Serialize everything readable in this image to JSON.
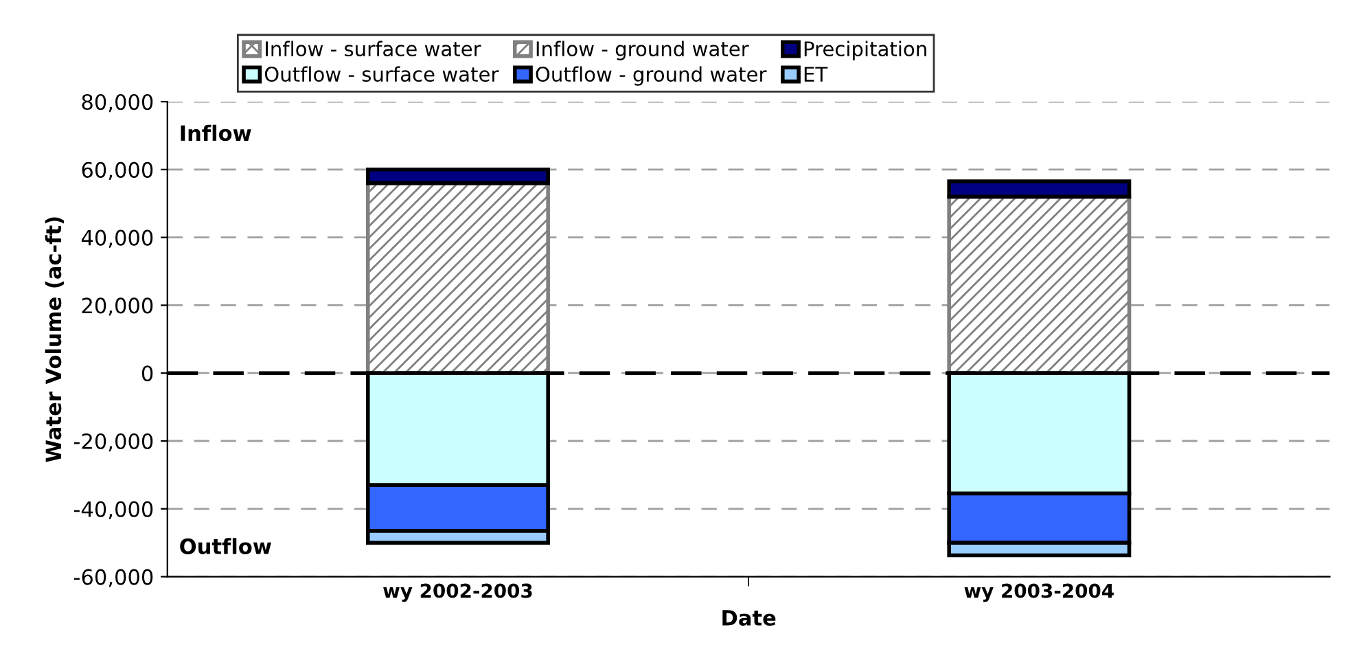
{
  "chart_data": {
    "type": "bar",
    "stacked": true,
    "xlabel": "Date",
    "ylabel": "Water Volume (ac-ft)",
    "categories": [
      "wy 2002-2003",
      "wy 2003-2004"
    ],
    "series": [
      {
        "name": "Inflow - surface water",
        "color": "#808080",
        "values": [
          null,
          null
        ]
      },
      {
        "name": "Inflow - ground water",
        "color": "#808080",
        "values": [
          56000,
          52000
        ]
      },
      {
        "name": "Precipitation",
        "color": "#000080",
        "values": [
          4000,
          4500
        ]
      },
      {
        "name": "Outflow - surface water",
        "color": "#ccffff",
        "values": [
          -33000,
          -35500
        ]
      },
      {
        "name": "Outflow - ground water",
        "color": "#3366ff",
        "values": [
          -13500,
          -14500
        ]
      },
      {
        "name": "ET",
        "color": "#99ccff",
        "values": [
          -3500,
          -3700
        ]
      }
    ],
    "ylim": [
      -60000,
      80000
    ],
    "yticks": [
      {
        "value": -60000,
        "label": "-60,000"
      },
      {
        "value": -40000,
        "label": "-40,000"
      },
      {
        "value": -20000,
        "label": "-20,000"
      },
      0,
      {
        "value": 20000,
        "label": "20,000"
      },
      {
        "value": 40000,
        "label": "40,000"
      },
      {
        "value": 60000,
        "label": "60,000"
      },
      {
        "value": 80000,
        "label": "80,000"
      }
    ],
    "grid": "y",
    "legend": "top",
    "ref_lines": [
      {
        "axis": "y",
        "value": 0,
        "color": "#000000",
        "line_style": "dashed"
      }
    ],
    "annotations": [
      "Inflow",
      "Outflow"
    ]
  }
}
